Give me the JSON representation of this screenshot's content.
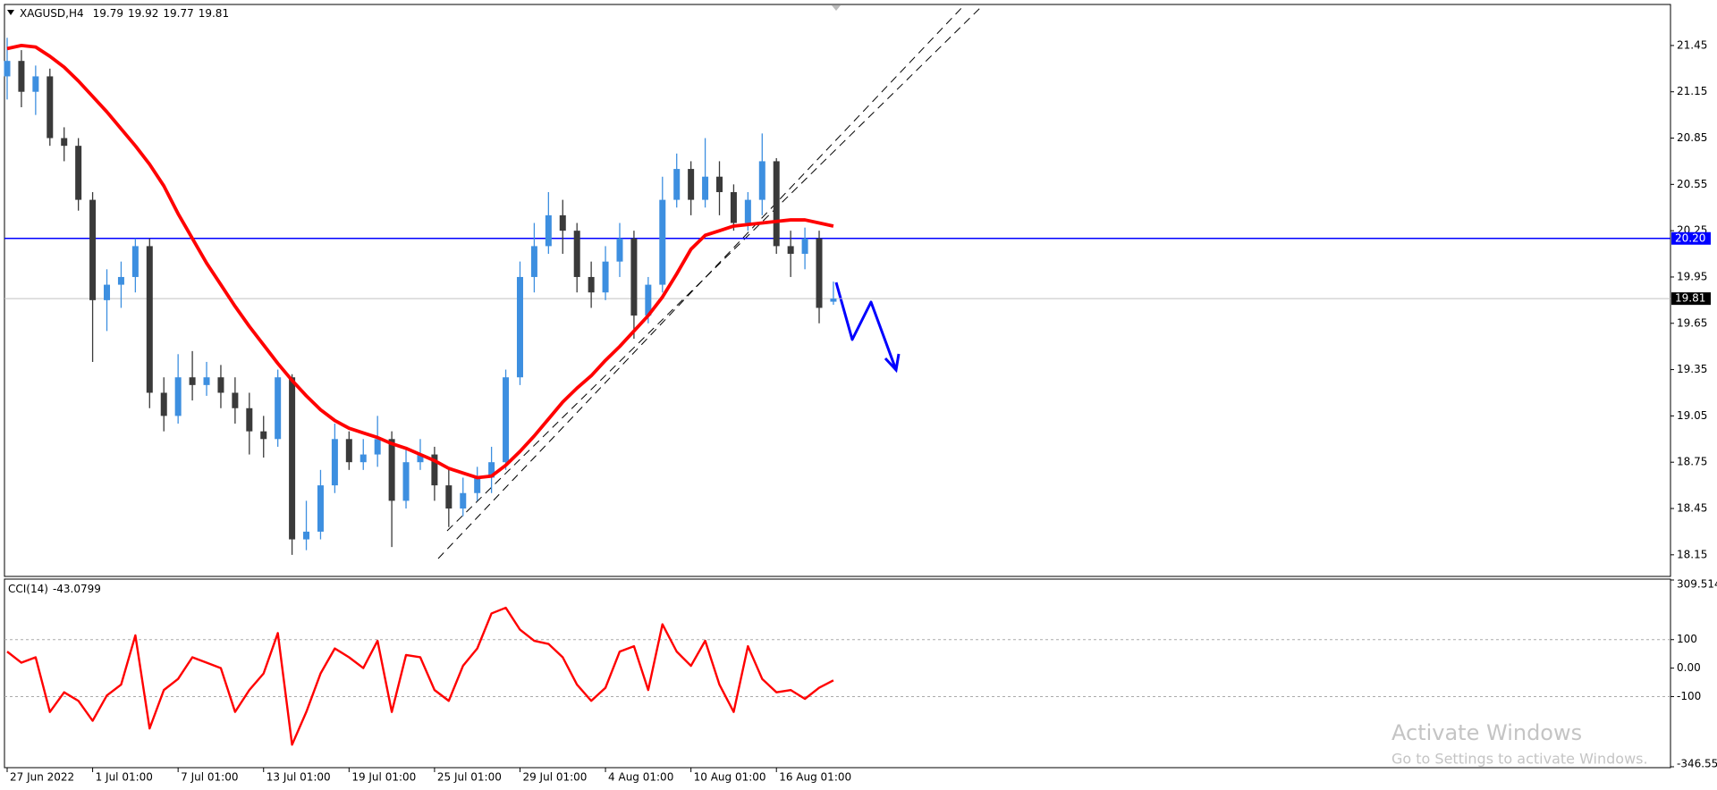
{
  "chart_data": [
    {
      "type": "candlestick",
      "title": "XAGUSD,H4",
      "categories": [
        "27 Jun 2022",
        null,
        null,
        null,
        null,
        null,
        "1 Jul 01:00",
        null,
        null,
        null,
        null,
        null,
        "7 Jul 01:00",
        null,
        null,
        null,
        null,
        null,
        "13 Jul 01:00",
        null,
        null,
        null,
        null,
        null,
        "19 Jul 01:00",
        null,
        null,
        null,
        null,
        null,
        "25 Jul 01:00",
        null,
        null,
        null,
        null,
        null,
        "29 Jul 01:00",
        null,
        null,
        null,
        null,
        null,
        "4 Aug 01:00",
        null,
        null,
        null,
        null,
        null,
        "10 Aug 01:00",
        null,
        null,
        null,
        null,
        null,
        "16 Aug 01:00",
        null,
        null,
        null,
        null
      ],
      "open": [
        21.25,
        21.35,
        21.15,
        21.25,
        20.85,
        20.8,
        20.45,
        19.8,
        19.9,
        19.95,
        20.15,
        19.2,
        19.05,
        19.3,
        19.25,
        19.3,
        19.2,
        19.1,
        18.95,
        18.9,
        19.3,
        18.25,
        18.3,
        18.6,
        18.9,
        18.75,
        18.8,
        18.9,
        18.5,
        18.75,
        18.8,
        18.6,
        18.45,
        18.55,
        18.65,
        18.75,
        19.3,
        19.95,
        20.15,
        20.35,
        20.25,
        19.95,
        19.85,
        20.05,
        20.2,
        19.7,
        19.9,
        20.45,
        20.65,
        20.45,
        20.6,
        20.5,
        20.3,
        20.45,
        20.7,
        20.15,
        20.1,
        20.2,
        19.79
      ],
      "high": [
        21.5,
        21.42,
        21.32,
        21.3,
        20.92,
        20.85,
        20.5,
        20.0,
        20.05,
        20.2,
        20.2,
        19.3,
        19.45,
        19.47,
        19.4,
        19.38,
        19.3,
        19.2,
        19.05,
        19.35,
        19.32,
        18.5,
        18.7,
        19.0,
        18.95,
        18.9,
        19.05,
        18.95,
        18.85,
        18.9,
        18.85,
        18.7,
        18.65,
        18.72,
        18.85,
        19.35,
        20.05,
        20.3,
        20.5,
        20.45,
        20.3,
        20.05,
        20.15,
        20.3,
        20.25,
        19.95,
        20.6,
        20.75,
        20.7,
        20.85,
        20.7,
        20.55,
        20.5,
        20.88,
        20.72,
        20.25,
        20.27,
        20.25,
        19.92
      ],
      "low": [
        21.1,
        21.05,
        21.0,
        20.8,
        20.7,
        20.38,
        19.4,
        19.6,
        19.75,
        19.85,
        19.1,
        18.95,
        19.0,
        19.15,
        19.18,
        19.1,
        19.0,
        18.8,
        18.78,
        18.85,
        18.15,
        18.18,
        18.25,
        18.55,
        18.7,
        18.7,
        18.72,
        18.2,
        18.45,
        18.7,
        18.5,
        18.33,
        18.4,
        18.5,
        18.55,
        18.7,
        19.25,
        19.85,
        20.1,
        20.1,
        19.85,
        19.75,
        19.8,
        19.95,
        19.55,
        19.65,
        19.85,
        20.4,
        20.35,
        20.4,
        20.35,
        20.25,
        20.25,
        20.35,
        20.1,
        19.95,
        20.0,
        19.65,
        19.77
      ],
      "close": [
        21.35,
        21.15,
        21.25,
        20.85,
        20.8,
        20.45,
        19.8,
        19.9,
        19.95,
        20.15,
        19.2,
        19.05,
        19.3,
        19.25,
        19.3,
        19.2,
        19.1,
        18.95,
        18.9,
        19.3,
        18.25,
        18.3,
        18.6,
        18.9,
        18.75,
        18.8,
        18.9,
        18.5,
        18.75,
        18.8,
        18.6,
        18.45,
        18.55,
        18.65,
        18.75,
        19.3,
        19.95,
        20.15,
        20.35,
        20.25,
        19.95,
        19.85,
        20.05,
        20.2,
        19.7,
        19.9,
        20.45,
        20.65,
        20.45,
        20.6,
        20.5,
        20.3,
        20.45,
        20.7,
        20.15,
        20.1,
        20.2,
        19.75,
        19.81
      ],
      "up_color": "#3d8fe0",
      "down_color": "#3a3a3a",
      "overlays": [
        {
          "type": "line",
          "color": "#ff0000",
          "values": [
            21.43,
            21.45,
            21.44,
            21.38,
            21.31,
            21.22,
            21.12,
            21.02,
            20.91,
            20.8,
            20.68,
            20.54,
            20.36,
            20.2,
            20.04,
            19.9,
            19.76,
            19.63,
            19.51,
            19.39,
            19.28,
            19.18,
            19.09,
            19.02,
            18.97,
            18.94,
            18.91,
            18.87,
            18.84,
            18.8,
            18.76,
            18.71,
            18.68,
            18.65,
            18.66,
            18.73,
            18.82,
            18.92,
            19.03,
            19.14,
            19.23,
            19.31,
            19.41,
            19.5,
            19.6,
            19.7,
            19.82,
            19.97,
            20.13,
            20.22,
            20.25,
            20.28,
            20.29,
            20.3,
            20.31,
            20.32,
            20.32,
            20.3,
            20.28
          ]
        }
      ],
      "levels": [
        {
          "value": 20.2,
          "label": "20.20",
          "color": "#0000ff"
        }
      ],
      "last_price_color": "#c0c0c0",
      "ylim": [
        18.01,
        21.71
      ],
      "yticks": [
        18.15,
        18.45,
        18.75,
        19.05,
        19.35,
        19.65,
        19.95,
        20.25,
        20.55,
        20.85,
        21.15,
        21.45
      ]
    },
    {
      "type": "line",
      "title": "CCI(14)",
      "color": "#ff0000",
      "values": [
        58,
        19,
        38,
        -154,
        -85,
        -115,
        -185,
        -96,
        -58,
        115,
        -212,
        -77,
        -38,
        38,
        19,
        0,
        -154,
        -77,
        -19,
        123,
        -269,
        -154,
        -19,
        69,
        38,
        0,
        96,
        -154,
        46,
        38,
        -77,
        -115,
        8,
        69,
        192,
        212,
        135,
        96,
        85,
        38,
        -58,
        -115,
        -69,
        58,
        77,
        -77,
        154,
        58,
        8,
        96,
        -58,
        -154,
        77,
        -38,
        -85,
        -77,
        -108,
        -69,
        -43.0799
      ],
      "levels": [
        100,
        -100
      ],
      "ylim": [
        -346.559,
        309.514
      ],
      "yticks": [
        309.514,
        100,
        {
          "value": 0,
          "label": "0.00"
        },
        -100,
        -346.559
      ]
    }
  ],
  "watermark": {
    "title": "Activate Windows",
    "subtitle": "Go to Settings to activate Windows."
  }
}
